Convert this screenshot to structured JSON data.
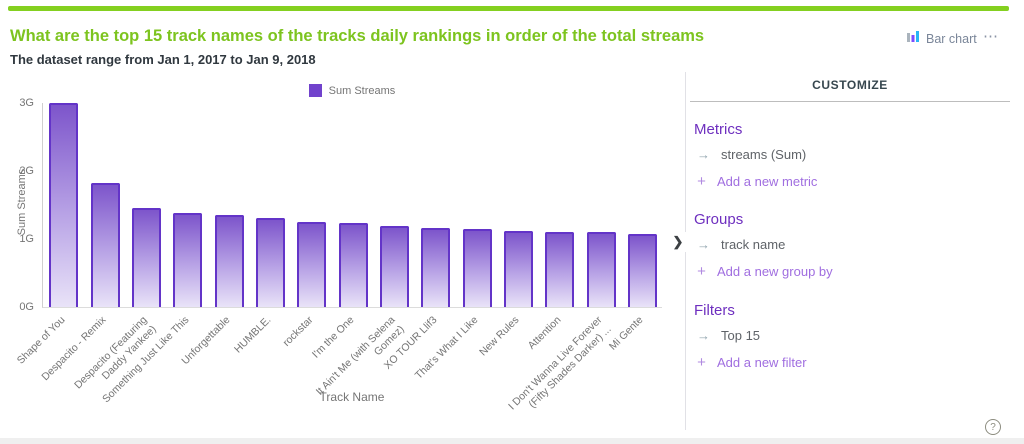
{
  "header": {
    "title": "What are the top 15 track names of the tracks daily rankings in order of the total streams",
    "subtitle": "The dataset range from Jan 1, 2017 to Jan 9, 2018",
    "chart_type_label": "Bar chart",
    "menu_label": "⋯"
  },
  "colors": {
    "accent_green": "#84d020",
    "title_green": "#7dc41f",
    "bar_border_purple": "#6334c8",
    "bar_fill_top": "#7d55cb",
    "bar_fill_bottom": "#e9e3f8",
    "section_purple": "#6e2fbf",
    "link_purple": "#a06ee0"
  },
  "chart_data": {
    "type": "bar",
    "title": "",
    "legend": [
      "Sum Streams"
    ],
    "xlabel": "Track Name",
    "ylabel": "Sum Streams",
    "ylim": [
      0,
      3
    ],
    "y_ticks": [
      "0G",
      "1G",
      "2G",
      "3G"
    ],
    "unit": "G = billions of streams",
    "grid": "off",
    "legend_position": "top-center",
    "categories": [
      "Shape of You",
      "Despacito - Remix",
      "Despacito (Featuring Daddy Yankee)",
      "Something Just Like This",
      "Unforgettable",
      "HUMBLE.",
      "rockstar",
      "I'm the One",
      "It Ain't Me (with Selena Gomez)",
      "XO TOUR Llif3",
      "That's What I Like",
      "New Rules",
      "Attention",
      "I Don't Wanna Live Forever (Fifty Shades Darker) ...",
      "Mi Gente"
    ],
    "values": [
      2.99,
      1.82,
      1.45,
      1.37,
      1.35,
      1.3,
      1.25,
      1.23,
      1.18,
      1.16,
      1.14,
      1.11,
      1.1,
      1.1,
      1.07
    ]
  },
  "panel": {
    "title": "CUSTOMIZE",
    "collapse_chevron": "❯",
    "sections": [
      {
        "name": "Metrics",
        "items": [
          "streams (Sum)"
        ],
        "add_label": "Add a new metric"
      },
      {
        "name": "Groups",
        "items": [
          "track name"
        ],
        "add_label": "Add a new group by"
      },
      {
        "name": "Filters",
        "items": [
          "Top 15"
        ],
        "add_label": "Add a new filter"
      }
    ]
  },
  "footer": {
    "help_label": "?"
  }
}
